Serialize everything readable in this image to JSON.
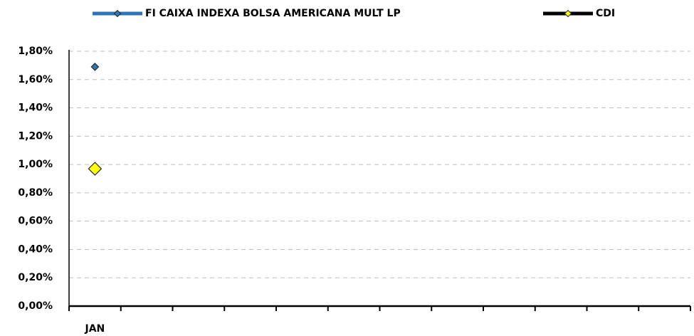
{
  "chart_data": {
    "type": "line",
    "categories": [
      "JAN",
      null,
      null,
      null,
      null,
      null,
      null,
      null,
      null,
      null,
      null,
      null
    ],
    "series": [
      {
        "name": "FI CAIXA INDEXA BOLSA AMERICANA MULT LP",
        "color": "#2e75b6",
        "marker_color": "#2e75b6",
        "values": [
          1.69,
          null,
          null,
          null,
          null,
          null,
          null,
          null,
          null,
          null,
          null,
          null
        ]
      },
      {
        "name": "CDI",
        "color": "#000000",
        "marker_color": "#ffff00",
        "values": [
          0.97,
          null,
          null,
          null,
          null,
          null,
          null,
          null,
          null,
          null,
          null,
          null
        ]
      }
    ],
    "ylim": [
      0,
      1.8
    ],
    "yticks": [
      {
        "value": 0,
        "label": "0,00%"
      },
      {
        "value": 0.2,
        "label": "0,20%"
      },
      {
        "value": 0.4,
        "label": "0,40%"
      },
      {
        "value": 0.6,
        "label": "0,60%"
      },
      {
        "value": 0.8,
        "label": "0,80%"
      },
      {
        "value": 1.0,
        "label": "1,00%"
      },
      {
        "value": 1.2,
        "label": "1,20%"
      },
      {
        "value": 1.4,
        "label": "1,40%"
      },
      {
        "value": 1.6,
        "label": "1,60%"
      },
      {
        "value": 1.8,
        "label": "1,80%"
      }
    ],
    "grid": true,
    "legend": "top"
  }
}
